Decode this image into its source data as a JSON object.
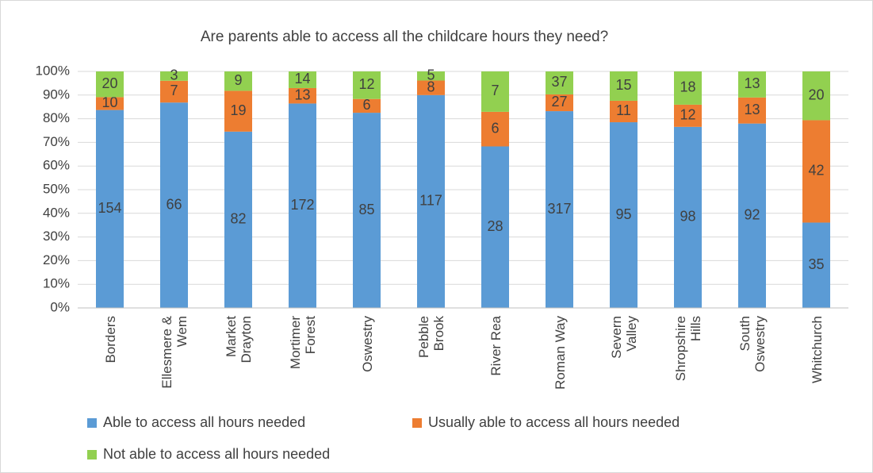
{
  "chart_data": {
    "type": "bar",
    "stacking": "percent",
    "title": "Are parents able to access all the childcare hours they need?",
    "categories": [
      "Borders",
      "Ellesmere & Wem",
      "Market Drayton",
      "Mortimer Forest",
      "Oswestry",
      "Pebble Brook",
      "River Rea",
      "Roman Way",
      "Severn Valley",
      "Shropshire Hills",
      "South Oswestry",
      "Whitchurch"
    ],
    "series": [
      {
        "name": "Able to access all hours needed",
        "color": "#5b9bd5",
        "values": [
          154,
          66,
          82,
          172,
          85,
          117,
          28,
          317,
          95,
          98,
          92,
          35
        ]
      },
      {
        "name": "Usually able to access all hours needed",
        "color": "#ed7d31",
        "values": [
          10,
          7,
          19,
          13,
          6,
          8,
          6,
          27,
          11,
          12,
          13,
          42
        ]
      },
      {
        "name": "Not able to access all hours needed",
        "color": "#92d050",
        "values": [
          20,
          3,
          9,
          14,
          12,
          5,
          7,
          37,
          15,
          18,
          13,
          20
        ]
      }
    ],
    "ylim": [
      0,
      100
    ],
    "yticks": [
      {
        "value": 0,
        "label": "0%"
      },
      {
        "value": 10,
        "label": "10%"
      },
      {
        "value": 20,
        "label": "20%"
      },
      {
        "value": 30,
        "label": "30%"
      },
      {
        "value": 40,
        "label": "40%"
      },
      {
        "value": 50,
        "label": "50%"
      },
      {
        "value": 60,
        "label": "60%"
      },
      {
        "value": 70,
        "label": "70%"
      },
      {
        "value": 80,
        "label": "80%"
      },
      {
        "value": 90,
        "label": "90%"
      },
      {
        "value": 100,
        "label": "100%"
      }
    ],
    "grid": true,
    "legend": "bottom"
  }
}
